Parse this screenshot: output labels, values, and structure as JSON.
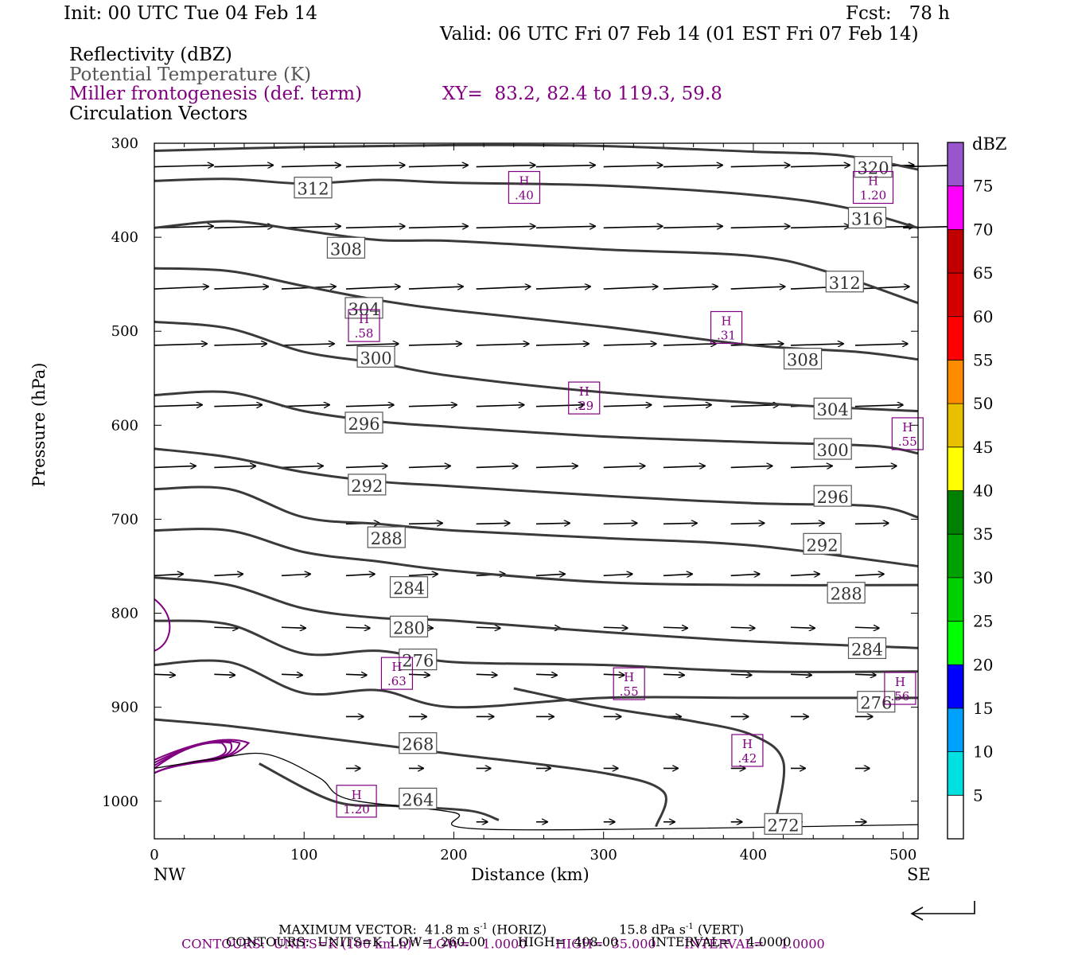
{
  "header": {
    "init": "Init: 00 UTC Tue 04 Feb 14",
    "fcst": "Fcst:   78 h",
    "valid": "Valid: 06 UTC Fri 07 Feb 14 (01 EST Fri 07 Feb 14)",
    "field1": "Reflectivity (dBZ)",
    "field2": "Potential Temperature (K)",
    "field3": "Miller frontogenesis (def. term)",
    "xy": "XY=  83.2, 82.4 to 119.3, 59.8",
    "field4": "Circulation Vectors"
  },
  "footer": {
    "max_vector": "MAXIMUM VECTOR:  41.8 m s",
    "max_vector_horiz": "(HORIZ)",
    "max_vector_vert_val": "15.8 dPa s",
    "max_vector_vert": "(VERT)",
    "sup_minus1": "-1",
    "contours1_a": "CONTOURS:  UNITS=K (100 km h)",
    "contours1_b": "LOW=   1.0000       HIGH=  35.000       INTERVAL=    1.0000",
    "contours2": "CONTOURS:  UNITS=K  LOW=  260.00        HIGH=  408.00        INTERVAL=    4.0000"
  },
  "colors": {
    "theta": "#3a3a3a",
    "fronto": "#800080",
    "vectors": "#000000"
  },
  "chart_data": {
    "type": "cross-section",
    "xlabel": "Distance (km)",
    "ylabel": "Pressure (hPa)",
    "xlim": [
      0,
      510
    ],
    "ylim": [
      1040,
      300
    ],
    "x_ticks": [
      0,
      100,
      200,
      300,
      400,
      500
    ],
    "y_ticks": [
      300,
      400,
      500,
      600,
      700,
      800,
      900,
      1000
    ],
    "x_end_labels": {
      "left": "NW",
      "right": "SE"
    },
    "theta_isotherms": [
      {
        "label": "320",
        "points": [
          [
            0,
            308
          ],
          [
            100,
            304
          ],
          [
            200,
            302
          ],
          [
            300,
            303
          ],
          [
            400,
            309
          ],
          [
            460,
            313
          ],
          [
            510,
            328
          ]
        ],
        "label_at": [
          480,
          326
        ]
      },
      {
        "label": "316",
        "points": [
          [
            0,
            340
          ],
          [
            50,
            338
          ],
          [
            100,
            343
          ],
          [
            150,
            339
          ],
          [
            200,
            342
          ],
          [
            300,
            345
          ],
          [
            400,
            355
          ],
          [
            460,
            368
          ],
          [
            510,
            390
          ]
        ],
        "label_at": [
          476,
          380
        ]
      },
      {
        "label": "312",
        "points": [
          [
            0,
            390
          ],
          [
            50,
            383
          ],
          [
            100,
            393
          ],
          [
            150,
            403
          ],
          [
            200,
            404
          ],
          [
            300,
            413
          ],
          [
            400,
            420
          ],
          [
            450,
            437
          ],
          [
            510,
            470
          ]
        ],
        "label_at": [
          461,
          448
        ],
        "label2": "312",
        "label2_at": [
          106,
          348
        ]
      },
      {
        "label": "308",
        "points": [
          [
            0,
            433
          ],
          [
            50,
            436
          ],
          [
            100,
            452
          ],
          [
            150,
            467
          ],
          [
            200,
            478
          ],
          [
            300,
            495
          ],
          [
            400,
            515
          ],
          [
            470,
            522
          ],
          [
            510,
            530
          ]
        ],
        "label_at": [
          433,
          530
        ],
        "label2": "308",
        "label2_at": [
          128,
          412
        ]
      },
      {
        "label": "304",
        "points": [
          [
            0,
            490
          ],
          [
            50,
            497
          ],
          [
            100,
            522
          ],
          [
            150,
            534
          ],
          [
            200,
            548
          ],
          [
            300,
            565
          ],
          [
            420,
            578
          ],
          [
            510,
            585
          ]
        ],
        "label_at": [
          453,
          583
        ],
        "label2": "304",
        "label2_at": [
          140,
          476
        ]
      },
      {
        "label": "300",
        "points": [
          [
            0,
            568
          ],
          [
            50,
            565
          ],
          [
            100,
            585
          ],
          [
            150,
            596
          ],
          [
            200,
            602
          ],
          [
            300,
            612
          ],
          [
            400,
            618
          ],
          [
            480,
            622
          ],
          [
            510,
            630
          ]
        ],
        "label_at": [
          453,
          626
        ],
        "label2": "300",
        "label2_at": [
          148,
          528
        ]
      },
      {
        "label": "296",
        "points": [
          [
            0,
            625
          ],
          [
            50,
            634
          ],
          [
            100,
            650
          ],
          [
            150,
            660
          ],
          [
            200,
            665
          ],
          [
            300,
            675
          ],
          [
            400,
            683
          ],
          [
            480,
            686
          ],
          [
            510,
            698
          ]
        ],
        "label_at": [
          453,
          676
        ],
        "label2": "296",
        "label2_at": [
          140,
          598
        ]
      },
      {
        "label": "292",
        "points": [
          [
            0,
            668
          ],
          [
            50,
            668
          ],
          [
            100,
            698
          ],
          [
            150,
            705
          ],
          [
            200,
            712
          ],
          [
            300,
            720
          ],
          [
            400,
            728
          ],
          [
            510,
            750
          ]
        ],
        "label_at": [
          446,
          727
        ],
        "label2": "292",
        "label2_at": [
          142,
          664
        ]
      },
      {
        "label": "288",
        "points": [
          [
            0,
            712
          ],
          [
            50,
            712
          ],
          [
            100,
            735
          ],
          [
            150,
            745
          ],
          [
            200,
            755
          ],
          [
            300,
            767
          ],
          [
            400,
            770
          ],
          [
            510,
            770
          ]
        ],
        "label_at": [
          462,
          779
        ],
        "label2": "288",
        "label2_at": [
          155,
          720
        ]
      },
      {
        "label": "284",
        "points": [
          [
            0,
            762
          ],
          [
            50,
            770
          ],
          [
            100,
            795
          ],
          [
            150,
            805
          ],
          [
            200,
            808
          ],
          [
            300,
            820
          ],
          [
            400,
            830
          ],
          [
            510,
            837
          ]
        ],
        "label_at": [
          476,
          838
        ],
        "label2": "284",
        "label2_at": [
          170,
          773
        ]
      },
      {
        "label": "280",
        "points": [
          [
            0,
            808
          ],
          [
            50,
            812
          ],
          [
            100,
            843
          ],
          [
            150,
            840
          ],
          [
            200,
            852
          ],
          [
            300,
            855
          ],
          [
            400,
            862
          ],
          [
            510,
            862
          ]
        ],
        "label_at": [
          170,
          815
        ]
      },
      {
        "label": "276",
        "points": [
          [
            0,
            855
          ],
          [
            50,
            852
          ],
          [
            100,
            885
          ],
          [
            150,
            882
          ],
          [
            200,
            900
          ],
          [
            300,
            890
          ],
          [
            400,
            890
          ],
          [
            510,
            890
          ]
        ],
        "label_at": [
          176,
          850
        ],
        "label2": "276",
        "label2_at": [
          482,
          895
        ]
      },
      {
        "label": "268",
        "points": [
          [
            0,
            913
          ],
          [
            50,
            920
          ],
          [
            100,
            930
          ],
          [
            150,
            940
          ],
          [
            200,
            950
          ],
          [
            300,
            970
          ],
          [
            340,
            990
          ],
          [
            335,
            1027
          ]
        ],
        "label_at": [
          176,
          939
        ]
      },
      {
        "label": "272",
        "points": [
          [
            240,
            880
          ],
          [
            300,
            900
          ],
          [
            360,
            915
          ],
          [
            400,
            930
          ],
          [
            420,
            958
          ],
          [
            415,
            1020
          ]
        ],
        "label_at": [
          420,
          1025
        ]
      },
      {
        "label": "264",
        "points": [
          [
            70,
            960
          ],
          [
            120,
            1000
          ],
          [
            160,
            1005
          ],
          [
            210,
            1010
          ],
          [
            230,
            1020
          ]
        ],
        "label_at": [
          176,
          998
        ]
      }
    ],
    "terrain_surface": [
      [
        0,
        965
      ],
      [
        40,
        955
      ],
      [
        75,
        950
      ],
      [
        110,
        975
      ],
      [
        130,
        998
      ],
      [
        200,
        1012
      ],
      [
        225,
        1030
      ],
      [
        510,
        1025
      ]
    ],
    "frontogenesis_maxima": [
      {
        "label": "H",
        "value": ".40",
        "x": 247,
        "p": 347
      },
      {
        "label": "H",
        "value": "1.20",
        "x": 480,
        "p": 347
      },
      {
        "label": "H",
        "value": ".58",
        "x": 140,
        "p": 494
      },
      {
        "label": "H",
        "value": ".31",
        "x": 382,
        "p": 496
      },
      {
        "label": "H",
        "value": ".29",
        "x": 287,
        "p": 571
      },
      {
        "label": "H",
        "value": ".55",
        "x": 503,
        "p": 609
      },
      {
        "label": "H",
        "value": ".63",
        "x": 162,
        "p": 864
      },
      {
        "label": "H",
        "value": ".55",
        "x": 317,
        "p": 875
      },
      {
        "label": "H",
        "value": ".56",
        "x": 498,
        "p": 880
      },
      {
        "label": "H",
        "value": ".42",
        "x": 396,
        "p": 946
      },
      {
        "label": "H",
        "value": "1.20",
        "x": 135,
        "p": 1000
      }
    ],
    "colorbar": {
      "title": "dBZ",
      "levels": [
        "5",
        "10",
        "15",
        "20",
        "25",
        "30",
        "35",
        "40",
        "45",
        "50",
        "55",
        "60",
        "65",
        "70",
        "75"
      ],
      "colors": [
        "#00e0e0",
        "#00a0ff",
        "#0000ff",
        "#00ff00",
        "#00d000",
        "#00a000",
        "#008000",
        "#ffff00",
        "#e8c000",
        "#ff8c00",
        "#ff0000",
        "#d40000",
        "#c00000",
        "#ff00ff",
        "#9955cc"
      ]
    }
  }
}
